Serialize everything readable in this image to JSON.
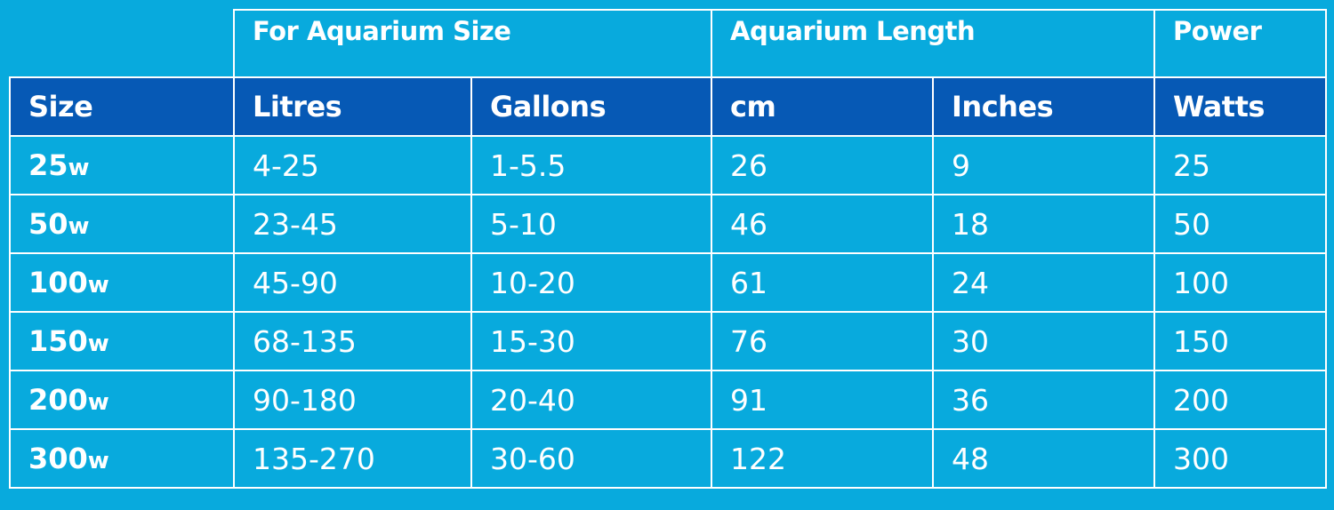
{
  "table": {
    "group_headers": {
      "aquarium_size": "For Aquarium Size",
      "aquarium_length": "Aquarium Length",
      "power": "Power"
    },
    "column_headers": {
      "size": "Size",
      "litres": "Litres",
      "gallons": "Gallons",
      "cm": "cm",
      "inches": "Inches",
      "watts": "Watts"
    },
    "rows": [
      {
        "size_num": "25",
        "size_unit": "w",
        "litres": "4-25",
        "gallons": "1-5.5",
        "cm": "26",
        "inches": "9",
        "watts": "25"
      },
      {
        "size_num": "50",
        "size_unit": "w",
        "litres": "23-45",
        "gallons": "5-10",
        "cm": "46",
        "inches": "18",
        "watts": "50"
      },
      {
        "size_num": "100",
        "size_unit": "w",
        "litres": "45-90",
        "gallons": "10-20",
        "cm": "61",
        "inches": "24",
        "watts": "100"
      },
      {
        "size_num": "150",
        "size_unit": "w",
        "litres": "68-135",
        "gallons": "15-30",
        "cm": "76",
        "inches": "30",
        "watts": "150"
      },
      {
        "size_num": "200",
        "size_unit": "w",
        "litres": "90-180",
        "gallons": "20-40",
        "cm": "91",
        "inches": "36",
        "watts": "200"
      },
      {
        "size_num": "300",
        "size_unit": "w",
        "litres": "135-270",
        "gallons": "30-60",
        "cm": "122",
        "inches": "48",
        "watts": "300"
      }
    ]
  },
  "colors": {
    "background": "#08aadd",
    "header_band": "#0659b5",
    "grid_lines": "#ffffff",
    "text": "#ffffff"
  }
}
